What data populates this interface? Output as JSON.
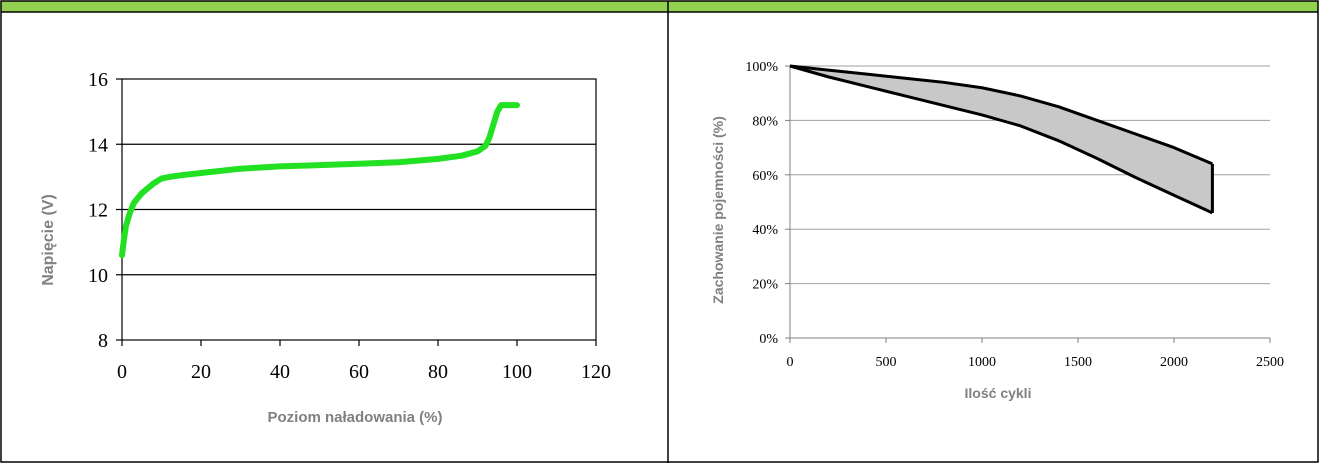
{
  "header": {
    "bar_color": "#92d050",
    "border_color": "#000000"
  },
  "colors": {
    "voltage_curve": "#22e022",
    "axis_title": "#808080",
    "grid": "#000000",
    "band_fill": "#c8c8c8",
    "band_stroke": "#000000",
    "right_grid": "#a0a0a0"
  },
  "chart_data": [
    {
      "type": "line",
      "xlabel": "Poziom naładowania (%)",
      "ylabel": "Napięcie (V)",
      "xlim": [
        0,
        120
      ],
      "ylim": [
        8,
        16
      ],
      "x_ticks": [
        "0",
        "20",
        "40",
        "60",
        "80",
        "100",
        "120"
      ],
      "y_ticks": [
        "8",
        "10",
        "12",
        "14",
        "16"
      ],
      "grid": "horizontal",
      "series": [
        {
          "x": [
            0,
            0.5,
            1,
            2,
            3,
            5,
            8,
            10,
            12,
            15,
            20,
            30,
            40,
            50,
            60,
            70,
            80,
            86,
            90,
            92,
            93,
            94,
            95,
            96,
            97,
            98,
            100
          ],
          "y": [
            10.6,
            11.1,
            11.5,
            11.9,
            12.2,
            12.5,
            12.8,
            12.95,
            13.0,
            13.05,
            13.12,
            13.25,
            13.32,
            13.36,
            13.4,
            13.45,
            13.55,
            13.65,
            13.78,
            13.95,
            14.2,
            14.6,
            15.0,
            15.2,
            15.2,
            15.2,
            15.2
          ]
        }
      ]
    },
    {
      "type": "area",
      "xlabel": "Ilość cykli",
      "ylabel": "Zachowanie pojemności (%)",
      "xlim": [
        0,
        2500
      ],
      "ylim": [
        0,
        100
      ],
      "x_ticks": [
        "0",
        "500",
        "1000",
        "1500",
        "2000",
        "2500"
      ],
      "y_ticks": [
        "0%",
        "20%",
        "40%",
        "60%",
        "80%",
        "100%"
      ],
      "grid": "horizontal",
      "series": [
        {
          "x": [
            0,
            200,
            400,
            600,
            800,
            1000,
            1200,
            1400,
            1600,
            1800,
            2000,
            2200
          ],
          "y": [
            100,
            98.5,
            97,
            95.5,
            94,
            92,
            89,
            85,
            80,
            75,
            70,
            64
          ]
        },
        {
          "x": [
            0,
            200,
            400,
            600,
            800,
            1000,
            1200,
            1400,
            1600,
            1800,
            2000,
            2200
          ],
          "y": [
            100,
            96,
            92.5,
            89,
            85.5,
            82,
            78,
            72.5,
            66,
            59,
            52.5,
            46
          ]
        }
      ]
    }
  ]
}
